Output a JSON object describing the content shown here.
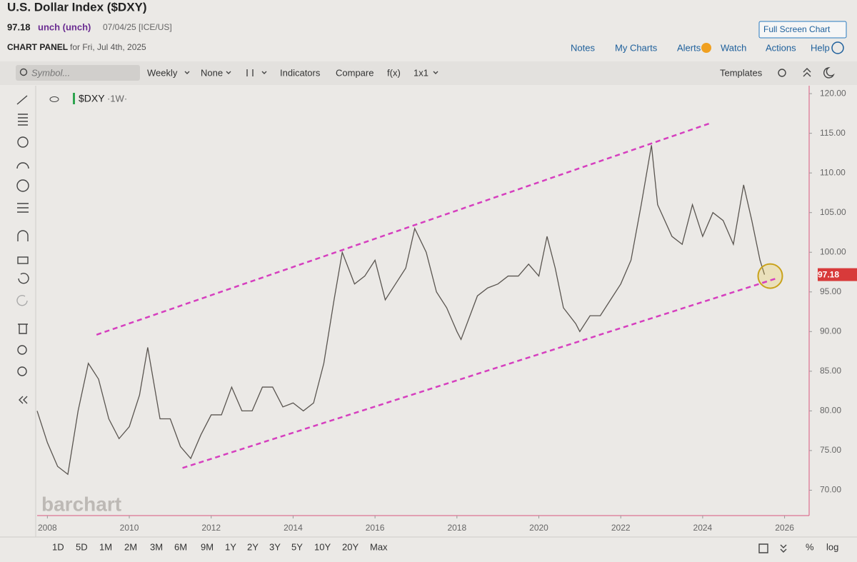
{
  "header": {
    "title": "U.S. Dollar Index ($DXY)",
    "price": "97.18",
    "change": "unch (unch)",
    "date_exchange": "07/04/25 [ICE/US]",
    "panel_label": "CHART PANEL",
    "panel_date": "for Fri, Jul 4th, 2025",
    "full_screen": "Full Screen Chart"
  },
  "links": [
    "Notes",
    "My Charts",
    "Alerts",
    "Watch",
    "Actions",
    "Help"
  ],
  "toolbar": {
    "symbol_placeholder": "Symbol...",
    "interval": "Weekly",
    "none": "None",
    "indicators": "Indicators",
    "compare": "Compare",
    "fx": "f(x)",
    "layout": "1x1",
    "templates": "Templates"
  },
  "ranges": [
    "1D",
    "5D",
    "1M",
    "2M",
    "3M",
    "6M",
    "9M",
    "1Y",
    "2Y",
    "3Y",
    "5Y",
    "10Y",
    "20Y",
    "Max"
  ],
  "scale_options": [
    "%",
    "log"
  ],
  "watermark": "barchart",
  "chart_data": {
    "type": "line",
    "legend_interval": "·1W·",
    "x": [
      2007.75,
      2008.0,
      2008.25,
      2008.5,
      2008.75,
      2009.0,
      2009.25,
      2009.5,
      2009.75,
      2010.0,
      2010.25,
      2010.45,
      2010.75,
      2011.0,
      2011.25,
      2011.5,
      2011.75,
      2012.0,
      2012.25,
      2012.5,
      2012.75,
      2013.0,
      2013.25,
      2013.5,
      2013.75,
      2014.0,
      2014.25,
      2014.5,
      2014.75,
      2015.0,
      2015.2,
      2015.5,
      2015.75,
      2016.0,
      2016.25,
      2016.5,
      2016.75,
      2016.97,
      2017.25,
      2017.5,
      2017.75,
      2018.0,
      2018.1,
      2018.5,
      2018.75,
      2019.0,
      2019.25,
      2019.5,
      2019.75,
      2020.0,
      2020.2,
      2020.4,
      2020.6,
      2020.9,
      2021.0,
      2021.25,
      2021.5,
      2021.75,
      2022.0,
      2022.25,
      2022.5,
      2022.75,
      2022.9,
      2023.25,
      2023.5,
      2023.75,
      2024.0,
      2024.25,
      2024.5,
      2024.75,
      2025.0,
      2025.2,
      2025.4,
      2025.51
    ],
    "series": [
      {
        "name": "$DXY",
        "color": "#5a5550",
        "values": [
          80,
          76,
          73,
          72,
          80,
          86,
          84,
          79,
          76.5,
          78,
          82,
          88,
          79,
          79,
          75.5,
          74,
          77,
          79.5,
          79.5,
          83,
          80,
          80,
          83,
          83,
          80.5,
          81,
          80,
          81,
          86,
          94,
          100,
          96,
          97,
          99,
          94,
          96,
          98,
          103,
          100,
          95,
          93,
          90,
          89,
          94.5,
          95.5,
          96,
          97,
          97,
          98.5,
          97,
          102,
          98,
          93,
          91,
          90,
          92,
          92,
          94,
          96,
          99,
          106,
          113.5,
          106,
          102,
          101,
          106,
          102,
          105,
          104,
          101,
          108.5,
          104,
          99,
          97.18
        ]
      }
    ],
    "channels": [
      {
        "color": "#d63fbf",
        "x": [
          2009.2,
          2024.2
        ],
        "y": [
          89.6,
          116.3
        ]
      },
      {
        "color": "#d63fbf",
        "x": [
          2011.3,
          2025.8
        ],
        "y": [
          72.8,
          96.7
        ]
      }
    ],
    "xlim": [
      2007.75,
      2026.6
    ],
    "xticks": [
      2008,
      2010,
      2012,
      2014,
      2016,
      2018,
      2020,
      2022,
      2024,
      2026
    ],
    "ylim": [
      66.8,
      121
    ],
    "yticks": [
      {
        "value": 70,
        "label": "70.00"
      },
      {
        "value": 75,
        "label": "75.00"
      },
      {
        "value": 80,
        "label": "80.00"
      },
      {
        "value": 85,
        "label": "85.00"
      },
      {
        "value": 90,
        "label": "90.00"
      },
      {
        "value": 95,
        "label": "95.00"
      },
      {
        "value": 100,
        "label": "100.00"
      },
      {
        "value": 105,
        "label": "105.00"
      },
      {
        "value": 110,
        "label": "110.00"
      },
      {
        "value": 115,
        "label": "115.00"
      },
      {
        "value": 120,
        "label": "120.00"
      }
    ],
    "grid": false,
    "last_label_color": "#d83a3a"
  }
}
